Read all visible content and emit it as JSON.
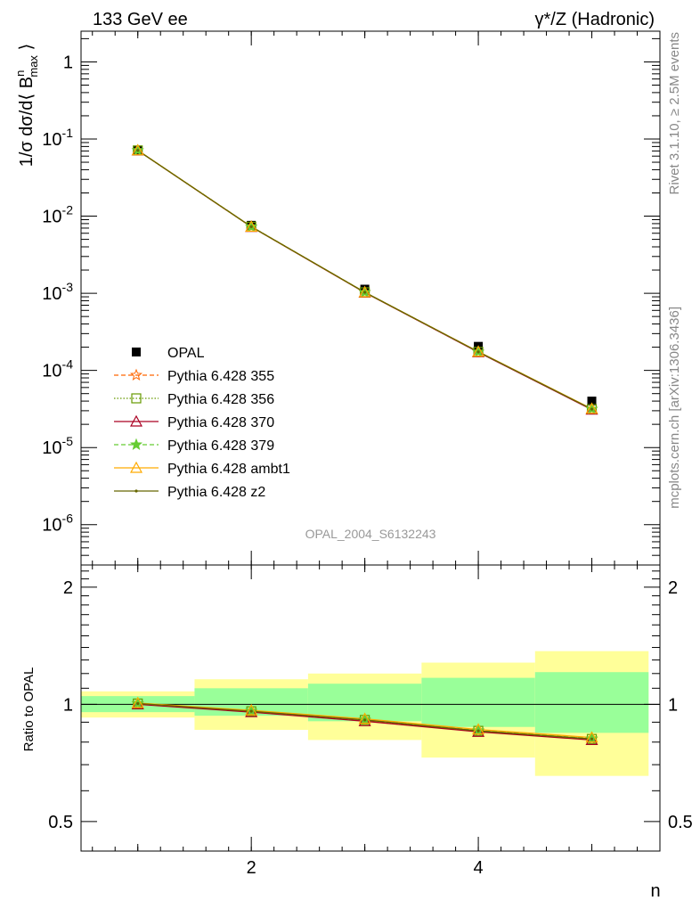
{
  "header": {
    "left_title": "133 GeV ee",
    "right_title": "γ*/Z (Hadronic)"
  },
  "side_labels": {
    "rivet": "Rivet 3.1.10, ≥ 2.5M events",
    "mcplots": "mcplots.cern.ch [arXiv:1306.3436]"
  },
  "watermark": "OPAL_2004_S6132243",
  "colors": {
    "data": "#000000",
    "p355": "#ff6600",
    "p356": "#669900",
    "p370": "#aa0022",
    "p379": "#66cc33",
    "ambt1": "#ffaa00",
    "z2": "#666600",
    "band_yellow": "#ffff99",
    "band_green": "#99ff99"
  },
  "chart_data": [
    {
      "type": "scatter",
      "panel": "main",
      "ylabel": "1/σ dσ/d⟨ B^n_max ⟩",
      "yscale": "log",
      "ylim": [
        3e-07,
        2.5
      ],
      "xlim": [
        0.5,
        5.6
      ],
      "y_ticks": [
        "1",
        "10^-1",
        "10^-2",
        "10^-3",
        "10^-4",
        "10^-5",
        "10^-6"
      ],
      "x": [
        1,
        2,
        3,
        4,
        5
      ],
      "series": [
        {
          "name": "OPAL",
          "key": "data",
          "marker": "square",
          "values": [
            0.071,
            0.0076,
            0.00113,
            0.000205,
            4e-05
          ]
        },
        {
          "name": "Pythia 6.428 355",
          "key": "p355",
          "marker": "star-open",
          "line": "dashed",
          "values": [
            0.0712,
            0.0073,
            0.00103,
            0.000174,
            3.15e-05
          ]
        },
        {
          "name": "Pythia 6.428 356",
          "key": "p356",
          "marker": "square-open",
          "line": "dotted",
          "values": [
            0.0712,
            0.0073,
            0.00103,
            0.000174,
            3.15e-05
          ]
        },
        {
          "name": "Pythia 6.428 370",
          "key": "p370",
          "marker": "triangle-open",
          "line": "solid",
          "values": [
            0.0711,
            0.00725,
            0.00102,
            0.000172,
            3.1e-05
          ]
        },
        {
          "name": "Pythia 6.428 379",
          "key": "p379",
          "marker": "star",
          "line": "dashed",
          "values": [
            0.0713,
            0.0073,
            0.00103,
            0.000174,
            3.16e-05
          ]
        },
        {
          "name": "Pythia 6.428 ambt1",
          "key": "ambt1",
          "marker": "triangle-open",
          "line": "solid",
          "values": [
            0.0713,
            0.0073,
            0.00103,
            0.000175,
            3.18e-05
          ]
        },
        {
          "name": "Pythia 6.428 z2",
          "key": "z2",
          "marker": "dot",
          "line": "solid",
          "values": [
            0.0712,
            0.0073,
            0.00103,
            0.000174,
            3.15e-05
          ]
        }
      ]
    },
    {
      "type": "line",
      "panel": "ratio",
      "ylabel": "Ratio to OPAL",
      "xlabel": "n",
      "ylim": [
        0.42,
        2.28
      ],
      "xlim": [
        0.5,
        5.6
      ],
      "y_ticks": [
        "0.5",
        "1",
        "2"
      ],
      "x_ticks": [
        "2",
        "4"
      ],
      "bins": [
        [
          0.5,
          1.5
        ],
        [
          1.5,
          2.5
        ],
        [
          2.5,
          3.5
        ],
        [
          3.5,
          4.5
        ],
        [
          4.5,
          5.5
        ]
      ],
      "band_yellow": [
        [
          0.925,
          1.08
        ],
        [
          0.86,
          1.16
        ],
        [
          0.81,
          1.2
        ],
        [
          0.73,
          1.28
        ],
        [
          0.655,
          1.37
        ]
      ],
      "band_green": [
        [
          0.955,
          1.05
        ],
        [
          0.935,
          1.1
        ],
        [
          0.905,
          1.13
        ],
        [
          0.875,
          1.17
        ],
        [
          0.845,
          1.21
        ]
      ],
      "x": [
        1,
        2,
        3,
        4,
        5
      ],
      "series": [
        {
          "name": "Pythia 6.428 355",
          "key": "p355",
          "values": [
            1.005,
            0.96,
            0.912,
            0.855,
            0.815
          ]
        },
        {
          "name": "Pythia 6.428 356",
          "key": "p356",
          "values": [
            1.005,
            0.96,
            0.912,
            0.855,
            0.815
          ]
        },
        {
          "name": "Pythia 6.428 370",
          "key": "p370",
          "values": [
            1.0,
            0.955,
            0.905,
            0.85,
            0.81
          ]
        },
        {
          "name": "Pythia 6.428 379",
          "key": "p379",
          "values": [
            1.006,
            0.962,
            0.914,
            0.857,
            0.817
          ]
        },
        {
          "name": "Pythia 6.428 ambt1",
          "key": "ambt1",
          "values": [
            1.008,
            0.965,
            0.918,
            0.862,
            0.822
          ]
        },
        {
          "name": "Pythia 6.428 z2",
          "key": "z2",
          "values": [
            1.005,
            0.96,
            0.912,
            0.855,
            0.815
          ]
        }
      ]
    }
  ]
}
